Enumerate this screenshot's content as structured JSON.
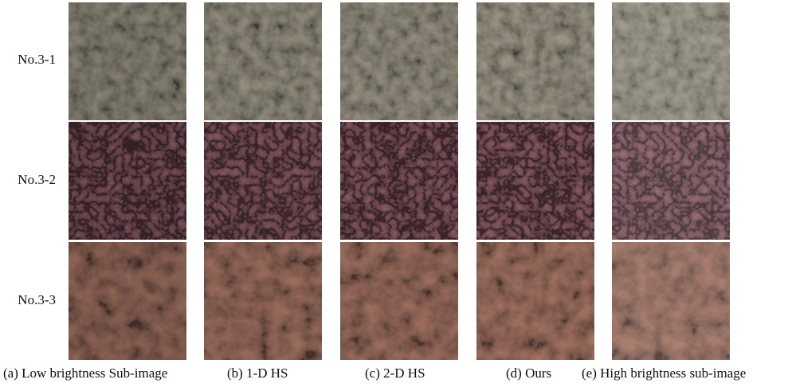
{
  "row_labels": [
    "No.3-1",
    "No.3-2",
    "No.3-3"
  ],
  "column_captions": [
    "(a) Low brightness Sub-image",
    "(b) 1-D HS",
    "(c) 2-D HS",
    "(d) Ours",
    "(e) High brightness sub-image"
  ]
}
